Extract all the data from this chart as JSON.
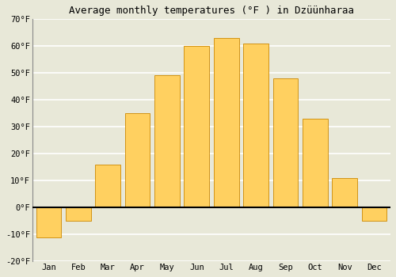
{
  "title": "Average monthly temperatures (°F ) in Dzüünharaa",
  "months": [
    "Jan",
    "Feb",
    "Mar",
    "Apr",
    "May",
    "Jun",
    "Jul",
    "Aug",
    "Sep",
    "Oct",
    "Nov",
    "Dec"
  ],
  "values": [
    -11,
    -5,
    16,
    35,
    49,
    60,
    63,
    61,
    48,
    33,
    11,
    -5
  ],
  "bar_color": "#FFA500",
  "bar_color_gradient_top": "#FFD060",
  "bar_edge_color": "#CC8800",
  "ylim": [
    -20,
    70
  ],
  "yticks": [
    -20,
    -10,
    0,
    10,
    20,
    30,
    40,
    50,
    60,
    70
  ],
  "ytick_labels": [
    "-20°F",
    "-10°F",
    "0°F",
    "10°F",
    "20°F",
    "30°F",
    "40°F",
    "50°F",
    "60°F",
    "70°F"
  ],
  "background_color": "#e8e8d8",
  "grid_color": "#ffffff",
  "zero_line_color": "#000000",
  "title_fontsize": 9,
  "tick_fontsize": 7.5
}
